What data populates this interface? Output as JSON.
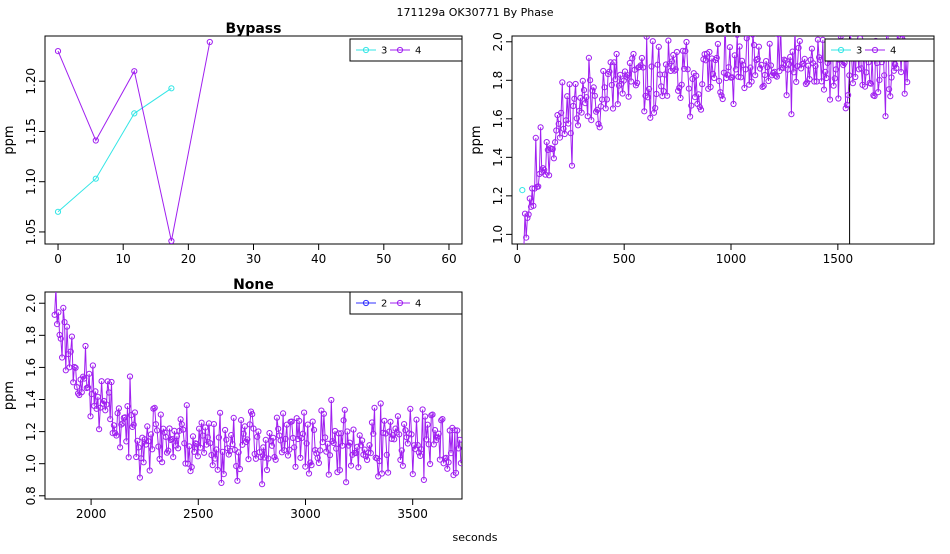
{
  "page": {
    "title": "171129a    OK30771   By Phase",
    "footer_xlabel": "seconds"
  },
  "colors": {
    "cyan": "#33e6e6",
    "purple": "#a020f0",
    "blue": "#3030ff",
    "axis": "#000000"
  },
  "chart_data": [
    {
      "id": "bypass",
      "type": "line",
      "title": "Bypass",
      "xlabel": "",
      "ylabel": "ppm",
      "xlim": [
        -2,
        62
      ],
      "ylim": [
        1.038,
        1.245
      ],
      "xticks": [
        0,
        10,
        20,
        30,
        40,
        50,
        60
      ],
      "yticks": [
        1.05,
        1.1,
        1.15,
        1.2
      ],
      "ytick_labels": [
        "1.05",
        "1.10",
        "1.15",
        "1.20"
      ],
      "legend": {
        "position": "top-right",
        "entries": [
          "3",
          "4"
        ]
      },
      "series": [
        {
          "name": "3",
          "color": "#33e6e6",
          "x": [
            0,
            5.8,
            11.7,
            17.4
          ],
          "y": [
            1.07,
            1.103,
            1.168,
            1.193
          ]
        },
        {
          "name": "4",
          "color": "#a020f0",
          "x": [
            0,
            5.8,
            11.7,
            17.4,
            23.3
          ],
          "y": [
            1.23,
            1.141,
            1.21,
            1.041,
            1.239
          ]
        }
      ]
    },
    {
      "id": "both",
      "type": "line",
      "title": "Both",
      "xlabel": "",
      "ylabel": "ppm",
      "xlim": [
        -25,
        1950
      ],
      "ylim": [
        0.95,
        2.03
      ],
      "xticks": [
        0,
        500,
        1000,
        1500
      ],
      "yticks": [
        1.0,
        1.2,
        1.4,
        1.6,
        1.8,
        2.0
      ],
      "ytick_labels": [
        "1.0",
        "1.2",
        "1.4",
        "1.6",
        "1.8",
        "2.0"
      ],
      "vline": 1555,
      "legend": {
        "position": "top-right",
        "entries": [
          "3",
          "4"
        ]
      },
      "series": [
        {
          "name": "3",
          "color": "#33e6e6",
          "x": [
            23
          ],
          "y": [
            1.23
          ]
        },
        {
          "name": "4",
          "color": "#a020f0",
          "generated": true,
          "count": 320,
          "x_start": 30,
          "x_end": 1830,
          "trend": {
            "start": 1.05,
            "end": 1.77,
            "tau": 140,
            "drift_after": 0.12
          },
          "noise": 0.13,
          "seed": 11
        }
      ]
    },
    {
      "id": "none",
      "type": "line",
      "title": "None",
      "xlabel": "seconds",
      "ylabel": "ppm",
      "xlim": [
        1785,
        3730
      ],
      "ylim": [
        0.78,
        2.07
      ],
      "xticks": [
        2000,
        2500,
        3000,
        3500
      ],
      "yticks": [
        0.8,
        1.0,
        1.2,
        1.4,
        1.6,
        1.8,
        2.0
      ],
      "ytick_labels": [
        "0.8",
        "1.0",
        "1.2",
        "1.4",
        "1.6",
        "1.8",
        "2.0"
      ],
      "legend": {
        "position": "top-right",
        "entries": [
          "2",
          "4"
        ]
      },
      "series": [
        {
          "name": "2",
          "color": "#3030ff",
          "x": [],
          "y": []
        },
        {
          "name": "4",
          "color": "#a020f0",
          "generated": true,
          "count": 330,
          "x_start": 1830,
          "x_end": 3725,
          "trend": {
            "start": 2.0,
            "end": 1.12,
            "tau": 170,
            "drift_after": 0
          },
          "noise": 0.14,
          "seed": 23
        }
      ]
    }
  ]
}
